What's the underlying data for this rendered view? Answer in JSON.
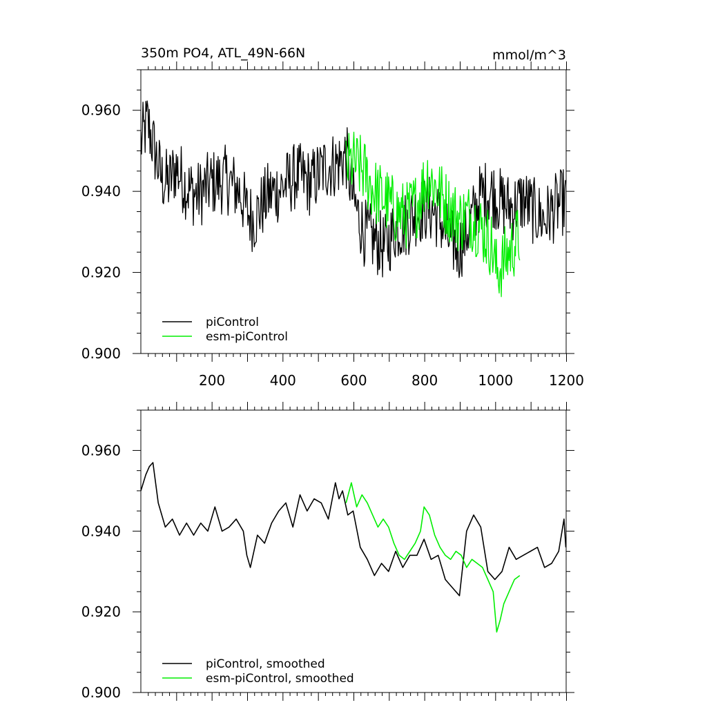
{
  "chart_data": [
    {
      "type": "line",
      "title": "350m PO4, ATL_49N-66N",
      "units": "mmol/m^3",
      "xlim": [
        1,
        1201
      ],
      "ylim": [
        0.9,
        0.97
      ],
      "xticks": [
        200,
        400,
        600,
        800,
        1000,
        1200
      ],
      "xtick_labels": [
        "200",
        "400",
        "600",
        "800",
        "1000",
        "1200"
      ],
      "yticks": [
        0.9,
        0.92,
        0.94,
        0.96
      ],
      "ytick_labels": [
        "0.900",
        "0.920",
        "0.940",
        "0.960"
      ],
      "legend_position": "lower-left",
      "series": [
        {
          "name": "piControl",
          "color": "#000000",
          "x": [
            1,
            20,
            40,
            60,
            80,
            100,
            130,
            160,
            200,
            240,
            280,
            300,
            320,
            360,
            400,
            440,
            480,
            520,
            560,
            580,
            600,
            630,
            660,
            690,
            720,
            750,
            780,
            810,
            840,
            870,
            900,
            930,
            960,
            990,
            1020,
            1050,
            1080,
            1110,
            1140,
            1170,
            1200
          ],
          "values": [
            0.952,
            0.957,
            0.95,
            0.943,
            0.942,
            0.946,
            0.941,
            0.939,
            0.942,
            0.943,
            0.94,
            0.935,
            0.933,
            0.939,
            0.941,
            0.944,
            0.942,
            0.946,
            0.947,
            0.949,
            0.938,
            0.93,
            0.928,
            0.926,
            0.931,
            0.932,
            0.935,
            0.936,
            0.934,
            0.928,
            0.926,
            0.932,
            0.939,
            0.94,
            0.937,
            0.936,
            0.938,
            0.935,
            0.933,
            0.936,
            0.938
          ]
        },
        {
          "name": "esm-piControl",
          "color": "#00ee00",
          "x": [
            580,
            600,
            630,
            660,
            690,
            720,
            750,
            780,
            810,
            840,
            870,
            900,
            930,
            960,
            990,
            1005,
            1020,
            1040,
            1070
          ],
          "values": [
            0.946,
            0.947,
            0.945,
            0.94,
            0.938,
            0.935,
            0.934,
            0.937,
            0.944,
            0.94,
            0.936,
            0.933,
            0.934,
            0.931,
            0.927,
            0.92,
            0.922,
            0.925,
            0.929
          ]
        }
      ]
    },
    {
      "type": "line",
      "xlim": [
        1,
        1201
      ],
      "ylim": [
        0.9,
        0.97
      ],
      "yticks": [
        0.9,
        0.92,
        0.94,
        0.96
      ],
      "ytick_labels": [
        "0.900",
        "0.920",
        "0.940",
        "0.960"
      ],
      "legend_position": "lower-left",
      "series": [
        {
          "name": "piControl, smoothed",
          "color": "#000000",
          "x": [
            1,
            15,
            25,
            35,
            50,
            70,
            90,
            110,
            130,
            150,
            170,
            190,
            210,
            230,
            250,
            270,
            290,
            300,
            310,
            330,
            350,
            370,
            390,
            410,
            430,
            450,
            470,
            490,
            510,
            530,
            550,
            560,
            570,
            585,
            600,
            620,
            640,
            660,
            680,
            700,
            720,
            740,
            760,
            780,
            800,
            820,
            840,
            860,
            880,
            900,
            920,
            940,
            960,
            980,
            1000,
            1020,
            1040,
            1060,
            1080,
            1100,
            1120,
            1140,
            1160,
            1180,
            1195,
            1200
          ],
          "values": [
            0.95,
            0.954,
            0.956,
            0.957,
            0.947,
            0.941,
            0.943,
            0.939,
            0.942,
            0.939,
            0.942,
            0.94,
            0.946,
            0.94,
            0.941,
            0.943,
            0.94,
            0.934,
            0.931,
            0.939,
            0.937,
            0.942,
            0.945,
            0.947,
            0.941,
            0.949,
            0.945,
            0.948,
            0.947,
            0.943,
            0.952,
            0.948,
            0.95,
            0.944,
            0.945,
            0.936,
            0.933,
            0.929,
            0.932,
            0.93,
            0.935,
            0.931,
            0.934,
            0.934,
            0.938,
            0.933,
            0.934,
            0.928,
            0.926,
            0.924,
            0.94,
            0.944,
            0.941,
            0.93,
            0.928,
            0.93,
            0.936,
            0.933,
            0.934,
            0.935,
            0.936,
            0.931,
            0.932,
            0.935,
            0.943,
            0.936
          ]
        },
        {
          "name": "esm-piControl, smoothed",
          "color": "#00ee00",
          "x": [
            580,
            595,
            610,
            625,
            640,
            655,
            670,
            685,
            700,
            715,
            730,
            745,
            760,
            775,
            790,
            800,
            815,
            830,
            845,
            860,
            875,
            890,
            905,
            920,
            935,
            950,
            965,
            980,
            995,
            1005,
            1015,
            1025,
            1035,
            1045,
            1055,
            1070
          ],
          "values": [
            0.947,
            0.952,
            0.946,
            0.949,
            0.947,
            0.944,
            0.941,
            0.943,
            0.941,
            0.937,
            0.934,
            0.933,
            0.935,
            0.937,
            0.94,
            0.946,
            0.944,
            0.939,
            0.936,
            0.934,
            0.933,
            0.935,
            0.934,
            0.931,
            0.933,
            0.932,
            0.931,
            0.928,
            0.925,
            0.915,
            0.918,
            0.922,
            0.924,
            0.926,
            0.928,
            0.929
          ]
        }
      ]
    }
  ]
}
